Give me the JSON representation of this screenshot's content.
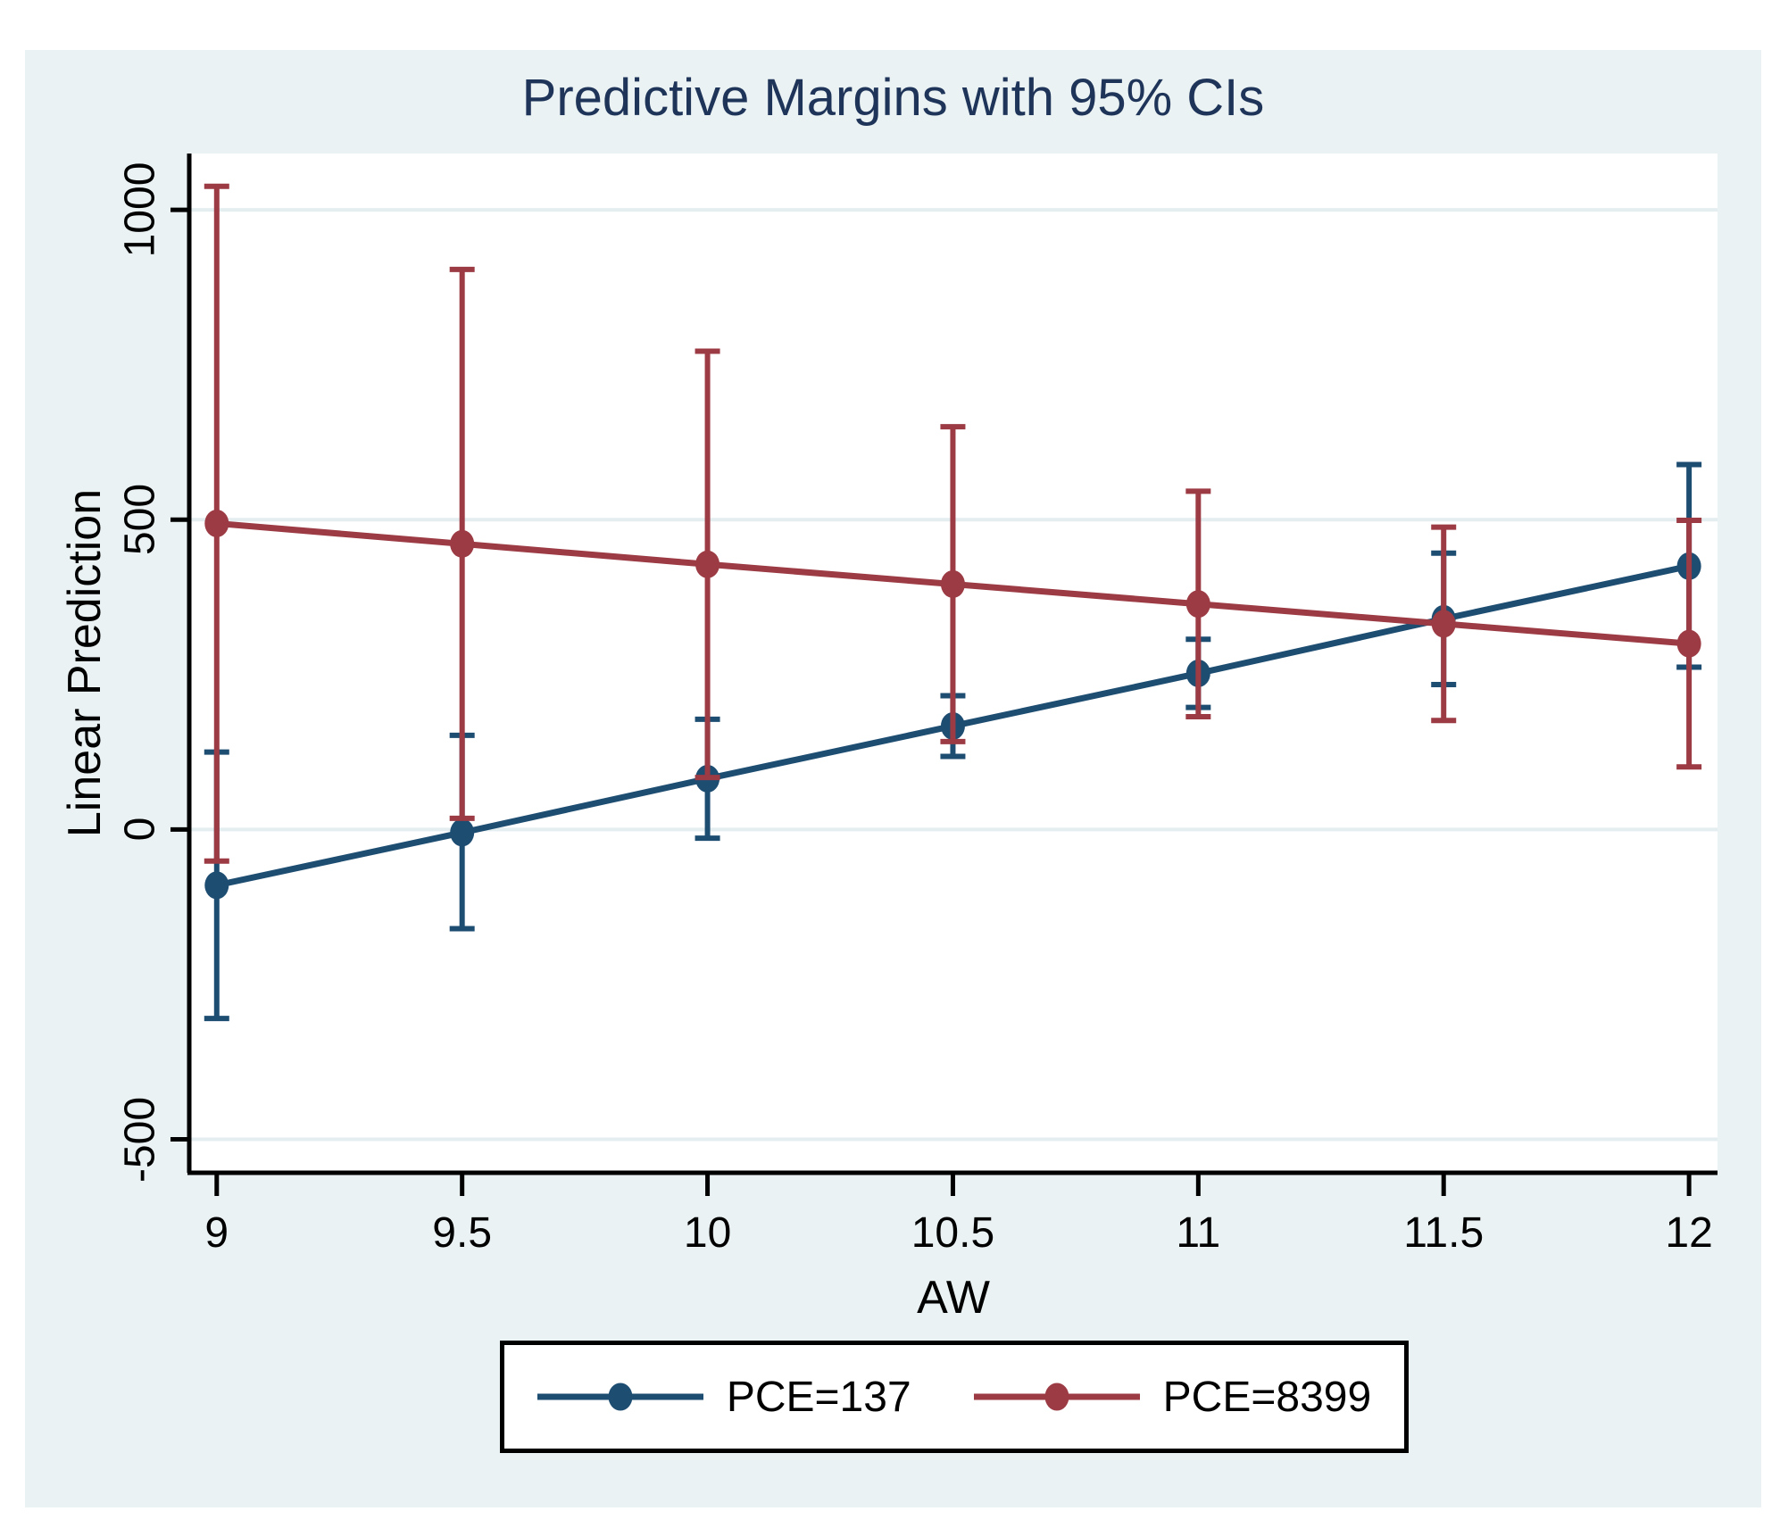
{
  "chart_data": {
    "type": "line",
    "title": "Predictive Margins with 95% CIs",
    "xlabel": "AW",
    "ylabel": "Linear Prediction",
    "error_bars": "95% CI",
    "grid": true,
    "legend_position": "bottom",
    "x": [
      9,
      9.5,
      10,
      10.5,
      11,
      11.5,
      12
    ],
    "x_tick_labels": [
      "9",
      "9.5",
      "10",
      "10.5",
      "11",
      "11.5",
      "12"
    ],
    "y_ticks": [
      1000,
      500,
      0,
      -500
    ],
    "y_tick_labels": [
      "1000",
      "500",
      "0",
      "-500"
    ],
    "xlim": [
      8.944,
      12.058
    ],
    "ylim": [
      -554,
      1091
    ],
    "series": [
      {
        "name": "PCE=137",
        "color": "#1e4d72",
        "values": [
          -90,
          -5,
          82,
          167,
          252,
          340,
          425
        ],
        "ci_low": [
          -305,
          -160,
          -14,
          118,
          197,
          234,
          262
        ],
        "ci_high": [
          125,
          152,
          178,
          216,
          307,
          446,
          589
        ]
      },
      {
        "name": "PCE=8399",
        "color": "#9c3b44",
        "values": [
          494,
          461,
          428,
          396,
          364,
          332,
          300
        ],
        "ci_low": [
          -51,
          18,
          84,
          142,
          182,
          176,
          101
        ],
        "ci_high": [
          1038,
          904,
          772,
          650,
          546,
          488,
          499
        ]
      }
    ]
  },
  "colors": {
    "background": "#EAF2F3",
    "plot_bg": "#FFFFFF",
    "grid": "#E4EEF0",
    "axis": "#000000",
    "title": "#1F3459"
  }
}
